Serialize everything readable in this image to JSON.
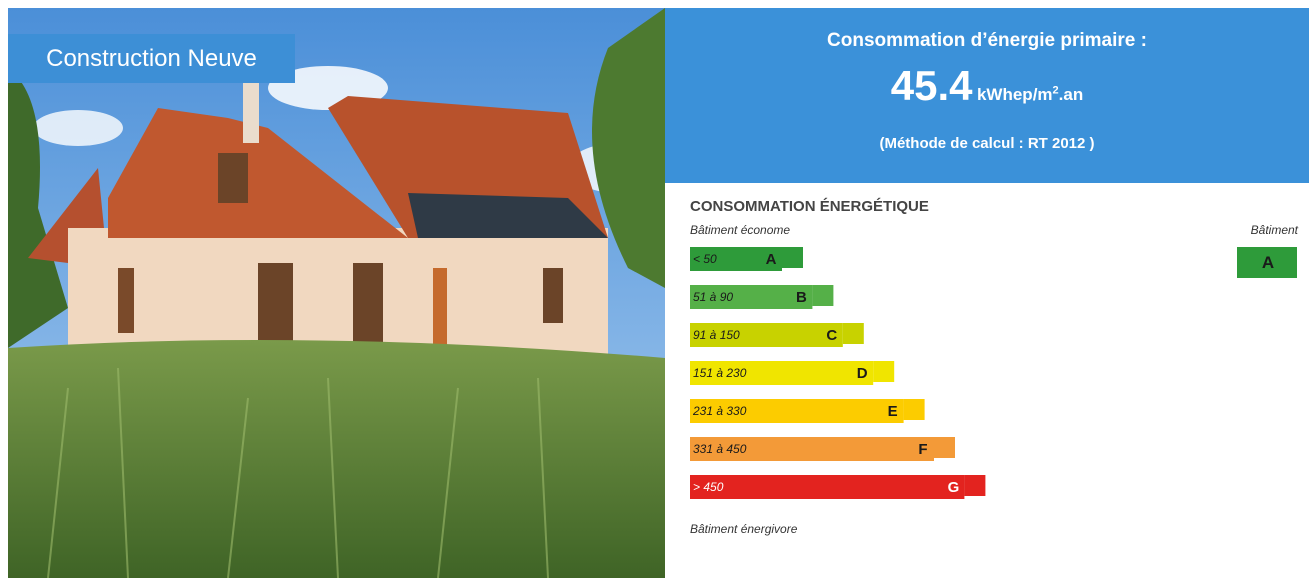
{
  "photo": {
    "badge": "Construction Neuve"
  },
  "header": {
    "title": "Consommation d’énergie primaire :",
    "value": 45.4,
    "unit": "kWhep/m",
    "unit_sup": "2",
    "unit_end": ".an",
    "method": "(Méthode de calcul : RT 2012 )"
  },
  "scale": {
    "title": "CONSOMMATION ÉNERGÉTIQUE",
    "top_note": "Bâtiment économe",
    "bottom_note": "Bâtiment énergivore",
    "building_label": "Bâtiment",
    "building_class": "A",
    "building_color": "#2e9b3a",
    "classes": [
      {
        "range": "< 50",
        "letter": "A",
        "color": "#2e9b3a",
        "text_color": "#1a1a1a"
      },
      {
        "range": "51 à 90",
        "letter": "B",
        "color": "#55b048",
        "text_color": "#1a1a1a"
      },
      {
        "range": "91 à 150",
        "letter": "C",
        "color": "#c8d200",
        "text_color": "#1a1a1a"
      },
      {
        "range": "151 à 230",
        "letter": "D",
        "color": "#f0e500",
        "text_color": "#1a1a1a"
      },
      {
        "range": "231 à 330",
        "letter": "E",
        "color": "#fccc00",
        "text_color": "#1a1a1a"
      },
      {
        "range": "331 à 450",
        "letter": "F",
        "color": "#f39a38",
        "text_color": "#1a1a1a"
      },
      {
        "range": "> 450",
        "letter": "G",
        "color": "#e3231f",
        "text_color": "#ffffff"
      }
    ]
  }
}
